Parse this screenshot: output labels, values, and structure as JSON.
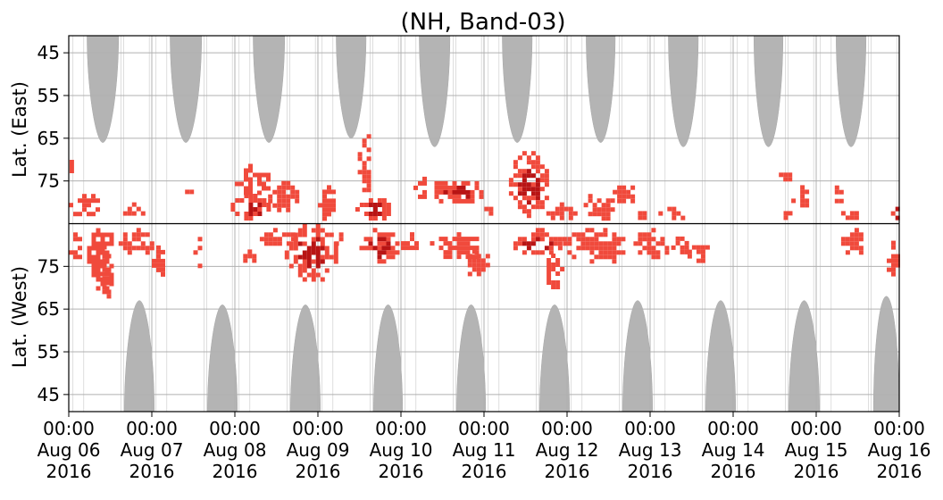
{
  "chart_data": {
    "type": "heatmap",
    "title": "(NH, Band-03)",
    "ylabel_top": "Lat. (East)",
    "ylabel_bottom": "Lat. (West)",
    "east_ticks": [
      45,
      55,
      65,
      75
    ],
    "west_ticks": [
      75,
      65,
      55,
      45
    ],
    "east_range": [
      85,
      41
    ],
    "west_range": [
      85,
      41
    ],
    "x_range": [
      "2016-08-06 00:00",
      "2016-08-16 00:00"
    ],
    "x_ticks": [
      {
        "time": "00:00",
        "date": "Aug 06",
        "year": "2016"
      },
      {
        "time": "00:00",
        "date": "Aug 07",
        "year": "2016"
      },
      {
        "time": "00:00",
        "date": "Aug 08",
        "year": "2016"
      },
      {
        "time": "00:00",
        "date": "Aug 09",
        "year": "2016"
      },
      {
        "time": "00:00",
        "date": "Aug 10",
        "year": "2016"
      },
      {
        "time": "00:00",
        "date": "Aug 11",
        "year": "2016"
      },
      {
        "time": "00:00",
        "date": "Aug 12",
        "year": "2016"
      },
      {
        "time": "00:00",
        "date": "Aug 13",
        "year": "2016"
      },
      {
        "time": "00:00",
        "date": "Aug 14",
        "year": "2016"
      },
      {
        "time": "00:00",
        "date": "Aug 15",
        "year": "2016"
      },
      {
        "time": "00:00",
        "date": "Aug 16",
        "year": "2016"
      }
    ],
    "grid": true,
    "colors": {
      "no_data": "#b4b4b4",
      "echo": "#f04a3c",
      "echo_strong": "#b81414"
    },
    "no_data_regions": [
      {
        "panel": "east",
        "day_start": 0.22,
        "day_end": 0.6,
        "lat_edge": 66
      },
      {
        "panel": "east",
        "day_start": 1.22,
        "day_end": 1.6,
        "lat_edge": 66
      },
      {
        "panel": "east",
        "day_start": 2.22,
        "day_end": 2.6,
        "lat_edge": 66
      },
      {
        "panel": "east",
        "day_start": 3.22,
        "day_end": 3.58,
        "lat_edge": 65
      },
      {
        "panel": "east",
        "day_start": 4.22,
        "day_end": 4.59,
        "lat_edge": 67
      },
      {
        "panel": "east",
        "day_start": 5.22,
        "day_end": 5.58,
        "lat_edge": 66
      },
      {
        "panel": "east",
        "day_start": 6.23,
        "day_end": 6.58,
        "lat_edge": 66
      },
      {
        "panel": "east",
        "day_start": 7.22,
        "day_end": 7.58,
        "lat_edge": 67
      },
      {
        "panel": "east",
        "day_start": 8.25,
        "day_end": 8.6,
        "lat_edge": 67
      },
      {
        "panel": "east",
        "day_start": 9.24,
        "day_end": 9.6,
        "lat_edge": 67
      },
      {
        "panel": "west",
        "day_start": 0.67,
        "day_end": 1.03,
        "lat_edge": 67
      },
      {
        "panel": "west",
        "day_start": 1.67,
        "day_end": 2.03,
        "lat_edge": 66
      },
      {
        "panel": "west",
        "day_start": 2.67,
        "day_end": 3.03,
        "lat_edge": 66
      },
      {
        "panel": "west",
        "day_start": 3.67,
        "day_end": 4.02,
        "lat_edge": 66
      },
      {
        "panel": "west",
        "day_start": 4.67,
        "day_end": 5.02,
        "lat_edge": 66
      },
      {
        "panel": "west",
        "day_start": 5.67,
        "day_end": 6.03,
        "lat_edge": 66
      },
      {
        "panel": "west",
        "day_start": 6.67,
        "day_end": 7.03,
        "lat_edge": 67
      },
      {
        "panel": "west",
        "day_start": 7.67,
        "day_end": 8.03,
        "lat_edge": 67
      },
      {
        "panel": "west",
        "day_start": 8.67,
        "day_end": 9.04,
        "lat_edge": 67
      },
      {
        "panel": "west",
        "day_start": 9.69,
        "day_end": 10.0,
        "lat_edge": 68
      }
    ],
    "echo_clusters": [
      {
        "panel": "east",
        "day_start": 0.0,
        "day_end": 0.35,
        "lat_start": 83,
        "lat_end": 77,
        "strong": false
      },
      {
        "panel": "east",
        "day_start": 0.01,
        "day_end": 0.06,
        "lat_start": 73,
        "lat_end": 69,
        "strong": false
      },
      {
        "panel": "west",
        "day_start": 0.0,
        "day_end": 0.12,
        "lat_start": 84,
        "lat_end": 75,
        "strong": false
      },
      {
        "panel": "west",
        "day_start": 0.22,
        "day_end": 0.55,
        "lat_start": 85,
        "lat_end": 70,
        "strong": false
      },
      {
        "panel": "west",
        "day_start": 0.35,
        "day_end": 0.5,
        "lat_start": 80,
        "lat_end": 68,
        "strong": false
      },
      {
        "panel": "west",
        "day_start": 0.6,
        "day_end": 1.0,
        "lat_start": 84,
        "lat_end": 78,
        "strong": false
      },
      {
        "panel": "west",
        "day_start": 1.0,
        "day_end": 1.12,
        "lat_start": 82,
        "lat_end": 72,
        "strong": false
      },
      {
        "panel": "east",
        "day_start": 0.6,
        "day_end": 0.95,
        "lat_start": 83,
        "lat_end": 80,
        "strong": false
      },
      {
        "panel": "east",
        "day_start": 1.4,
        "day_end": 1.5,
        "lat_start": 78,
        "lat_end": 76,
        "strong": false
      },
      {
        "panel": "west",
        "day_start": 1.5,
        "day_end": 1.56,
        "lat_start": 84,
        "lat_end": 73,
        "strong": false
      },
      {
        "panel": "east",
        "day_start": 1.95,
        "day_end": 2.4,
        "lat_start": 84,
        "lat_end": 78,
        "strong": true
      },
      {
        "panel": "east",
        "day_start": 2.0,
        "day_end": 2.4,
        "lat_start": 78,
        "lat_end": 71,
        "strong": false
      },
      {
        "panel": "west",
        "day_start": 2.1,
        "day_end": 2.25,
        "lat_start": 80,
        "lat_end": 75,
        "strong": false
      },
      {
        "panel": "east",
        "day_start": 2.4,
        "day_end": 2.75,
        "lat_start": 82,
        "lat_end": 75,
        "strong": false
      },
      {
        "panel": "west",
        "day_start": 2.3,
        "day_end": 2.7,
        "lat_start": 84,
        "lat_end": 80,
        "strong": false
      },
      {
        "panel": "west",
        "day_start": 2.6,
        "day_end": 3.2,
        "lat_start": 85,
        "lat_end": 72,
        "strong": true
      },
      {
        "panel": "east",
        "day_start": 3.0,
        "day_end": 3.2,
        "lat_start": 84,
        "lat_end": 76,
        "strong": false
      },
      {
        "panel": "west",
        "day_start": 3.2,
        "day_end": 3.3,
        "lat_start": 84,
        "lat_end": 79,
        "strong": false
      },
      {
        "panel": "east",
        "day_start": 3.45,
        "day_end": 3.85,
        "lat_start": 84,
        "lat_end": 78,
        "strong": true
      },
      {
        "panel": "east",
        "day_start": 3.48,
        "day_end": 3.62,
        "lat_start": 78,
        "lat_end": 63,
        "strong": false
      },
      {
        "panel": "west",
        "day_start": 3.5,
        "day_end": 3.95,
        "lat_start": 84,
        "lat_end": 76,
        "strong": true
      },
      {
        "panel": "west",
        "day_start": 4.0,
        "day_end": 4.2,
        "lat_start": 83,
        "lat_end": 78,
        "strong": false
      },
      {
        "panel": "east",
        "day_start": 4.15,
        "day_end": 4.35,
        "lat_start": 79,
        "lat_end": 74,
        "strong": false
      },
      {
        "panel": "east",
        "day_start": 4.35,
        "day_end": 4.95,
        "lat_start": 80,
        "lat_end": 74,
        "strong": true
      },
      {
        "panel": "west",
        "day_start": 4.35,
        "day_end": 5.0,
        "lat_start": 83,
        "lat_end": 77,
        "strong": false
      },
      {
        "panel": "west",
        "day_start": 4.75,
        "day_end": 5.05,
        "lat_start": 80,
        "lat_end": 73,
        "strong": false
      },
      {
        "panel": "east",
        "day_start": 4.95,
        "day_end": 5.1,
        "lat_start": 84,
        "lat_end": 80,
        "strong": false
      },
      {
        "panel": "east",
        "day_start": 5.3,
        "day_end": 5.75,
        "lat_start": 83,
        "lat_end": 68,
        "strong": true
      },
      {
        "panel": "west",
        "day_start": 5.3,
        "day_end": 5.95,
        "lat_start": 84,
        "lat_end": 78,
        "strong": true
      },
      {
        "panel": "west",
        "day_start": 5.7,
        "day_end": 5.92,
        "lat_start": 78,
        "lat_end": 70,
        "strong": false
      },
      {
        "panel": "east",
        "day_start": 5.75,
        "day_end": 6.1,
        "lat_start": 84,
        "lat_end": 80,
        "strong": false
      },
      {
        "panel": "west",
        "day_start": 5.95,
        "day_end": 6.7,
        "lat_start": 84,
        "lat_end": 76,
        "strong": false
      },
      {
        "panel": "east",
        "day_start": 6.2,
        "day_end": 6.55,
        "lat_start": 84,
        "lat_end": 77,
        "strong": false
      },
      {
        "panel": "east",
        "day_start": 6.55,
        "day_end": 6.8,
        "lat_start": 80,
        "lat_end": 75,
        "strong": false
      },
      {
        "panel": "east",
        "day_start": 6.8,
        "day_end": 7.0,
        "lat_start": 84,
        "lat_end": 81,
        "strong": false
      },
      {
        "panel": "west",
        "day_start": 6.8,
        "day_end": 7.2,
        "lat_start": 84,
        "lat_end": 77,
        "strong": false
      },
      {
        "panel": "east",
        "day_start": 7.1,
        "day_end": 7.4,
        "lat_start": 84,
        "lat_end": 80,
        "strong": false
      },
      {
        "panel": "west",
        "day_start": 7.2,
        "day_end": 7.45,
        "lat_start": 82,
        "lat_end": 78,
        "strong": false
      },
      {
        "panel": "west",
        "day_start": 7.45,
        "day_end": 7.7,
        "lat_start": 81,
        "lat_end": 76,
        "strong": false
      },
      {
        "panel": "east",
        "day_start": 8.5,
        "day_end": 8.7,
        "lat_start": 84,
        "lat_end": 81,
        "strong": false
      },
      {
        "panel": "east",
        "day_start": 8.55,
        "day_end": 8.7,
        "lat_start": 75,
        "lat_end": 72,
        "strong": false
      },
      {
        "panel": "east",
        "day_start": 8.7,
        "day_end": 8.9,
        "lat_start": 81,
        "lat_end": 76,
        "strong": false
      },
      {
        "panel": "east",
        "day_start": 9.17,
        "day_end": 9.3,
        "lat_start": 81,
        "lat_end": 75,
        "strong": false
      },
      {
        "panel": "east",
        "day_start": 9.3,
        "day_end": 9.5,
        "lat_start": 84,
        "lat_end": 81,
        "strong": false
      },
      {
        "panel": "west",
        "day_start": 9.3,
        "day_end": 9.55,
        "lat_start": 84,
        "lat_end": 78,
        "strong": false
      },
      {
        "panel": "east",
        "day_start": 9.9,
        "day_end": 10.0,
        "lat_start": 84,
        "lat_end": 80,
        "strong": true
      },
      {
        "panel": "west",
        "day_start": 9.85,
        "day_end": 9.96,
        "lat_start": 81,
        "lat_end": 71,
        "strong": false
      }
    ]
  }
}
